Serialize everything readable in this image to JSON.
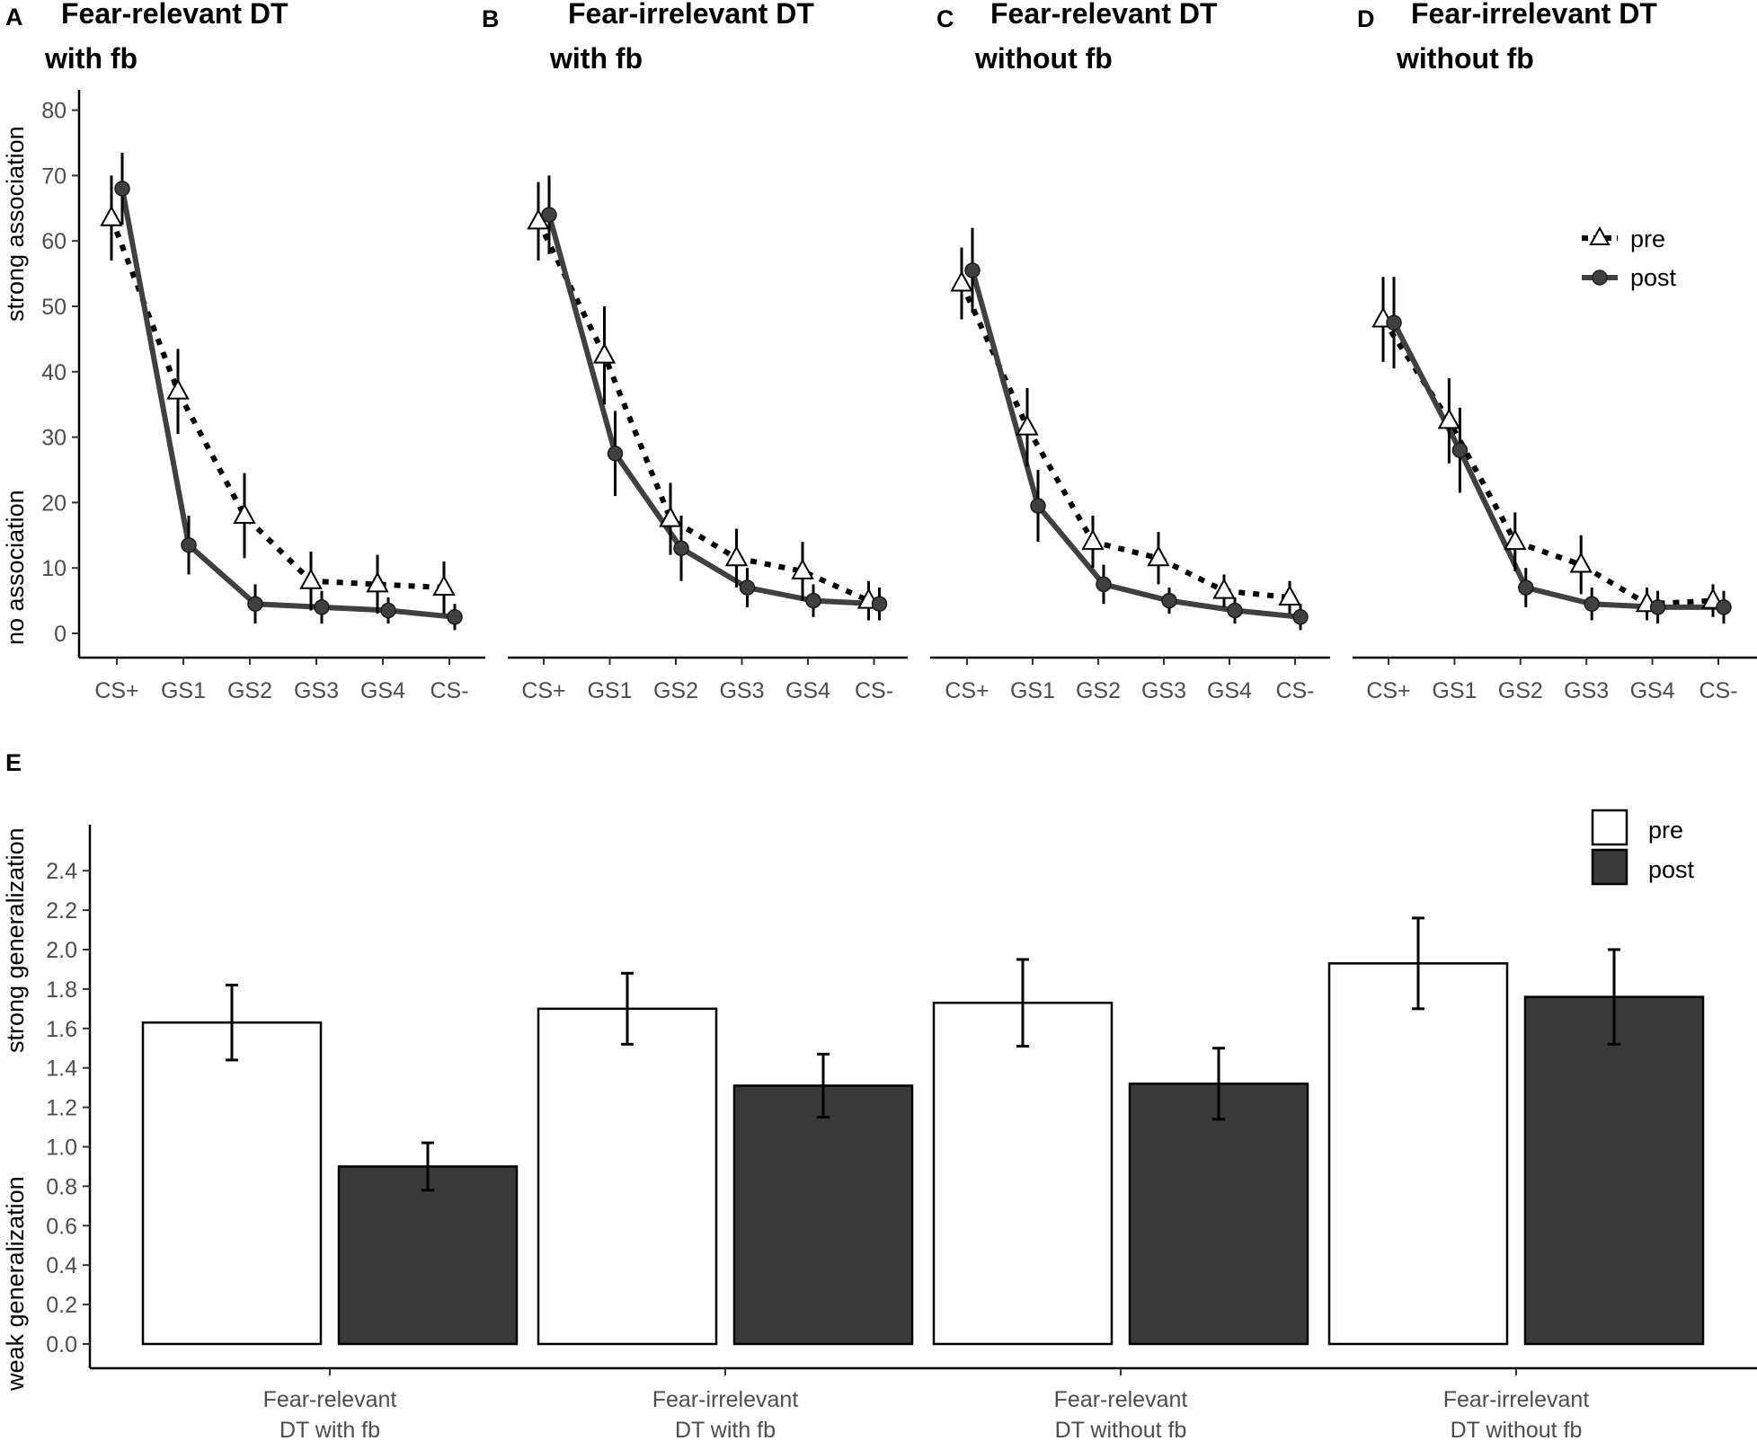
{
  "chart_data": [
    {
      "type": "line",
      "panel": "A",
      "title_lines": [
        "Fear-relevant DT",
        "with fb"
      ],
      "categories": [
        "CS+",
        "GS1",
        "GS2",
        "GS3",
        "GS4",
        "CS-"
      ],
      "ylabel_top": "strong association",
      "ylabel_bottom": "no association",
      "ylim": [
        0,
        80
      ],
      "yticks": [
        0,
        10,
        20,
        30,
        40,
        50,
        60,
        70,
        80
      ],
      "series": [
        {
          "name": "pre",
          "values": [
            63.5,
            37,
            18,
            8,
            7.5,
            7
          ],
          "err": [
            6.5,
            6.5,
            6.5,
            4.5,
            4.5,
            4
          ]
        },
        {
          "name": "post",
          "values": [
            68,
            13.5,
            4.5,
            4,
            3.5,
            2.5
          ],
          "err": [
            5.5,
            4.5,
            3,
            2.5,
            2,
            2
          ]
        }
      ]
    },
    {
      "type": "line",
      "panel": "B",
      "title_lines": [
        "Fear-irrelevant DT",
        "with fb"
      ],
      "categories": [
        "CS+",
        "GS1",
        "GS2",
        "GS3",
        "GS4",
        "CS-"
      ],
      "ylim": [
        0,
        80
      ],
      "series": [
        {
          "name": "pre",
          "values": [
            63,
            42.5,
            17.5,
            11.5,
            9.5,
            5
          ],
          "err": [
            6,
            7.5,
            5.5,
            4.5,
            4.5,
            3
          ]
        },
        {
          "name": "post",
          "values": [
            64,
            27.5,
            13,
            7,
            5,
            4.5
          ],
          "err": [
            6,
            6.5,
            5,
            3,
            2.5,
            2.5
          ]
        }
      ]
    },
    {
      "type": "line",
      "panel": "C",
      "title_lines": [
        "Fear-relevant DT",
        "without fb"
      ],
      "categories": [
        "CS+",
        "GS1",
        "GS2",
        "GS3",
        "GS4",
        "CS-"
      ],
      "ylim": [
        0,
        80
      ],
      "series": [
        {
          "name": "pre",
          "values": [
            53.5,
            31.5,
            14,
            11.5,
            6.5,
            5.5
          ],
          "err": [
            5.5,
            6,
            4,
            4,
            2.5,
            2.5
          ]
        },
        {
          "name": "post",
          "values": [
            55.5,
            19.5,
            7.5,
            5,
            3.5,
            2.5
          ],
          "err": [
            6.5,
            5.5,
            3,
            2,
            2,
            2
          ]
        }
      ]
    },
    {
      "type": "line",
      "panel": "D",
      "title_lines": [
        "Fear-irrelevant DT",
        "without fb"
      ],
      "categories": [
        "CS+",
        "GS1",
        "GS2",
        "GS3",
        "GS4",
        "CS-"
      ],
      "ylim": [
        0,
        80
      ],
      "legend": [
        "pre",
        "post"
      ],
      "series": [
        {
          "name": "pre",
          "values": [
            48,
            32.5,
            14,
            10.5,
            4.5,
            5
          ],
          "err": [
            6.5,
            6.5,
            4.5,
            4.5,
            2.5,
            2.5
          ]
        },
        {
          "name": "post",
          "values": [
            47.5,
            28,
            7,
            4.5,
            4,
            4
          ],
          "err": [
            7,
            6.5,
            3,
            2.5,
            2.5,
            2.5
          ]
        }
      ]
    },
    {
      "type": "bar",
      "panel": "E",
      "categories": [
        [
          "Fear-relevant",
          "DT with fb"
        ],
        [
          "Fear-irrelevant",
          "DT with fb"
        ],
        [
          "Fear-relevant",
          "DT without fb"
        ],
        [
          "Fear-irrelevant",
          "DT without fb"
        ]
      ],
      "ylabel_top": "strong generalization",
      "ylabel_bottom": "weak generalization",
      "ylim": [
        0,
        2.55
      ],
      "yticks": [
        "0.0",
        "0.2",
        "0.4",
        "0.6",
        "0.8",
        "1.0",
        "1.2",
        "1.4",
        "1.6",
        "1.8",
        "2.0",
        "2.2",
        "2.4"
      ],
      "legend": [
        "pre",
        "post"
      ],
      "series": [
        {
          "name": "pre",
          "values": [
            1.63,
            1.7,
            1.73,
            1.93
          ],
          "err": [
            0.19,
            0.18,
            0.22,
            0.23
          ]
        },
        {
          "name": "post",
          "values": [
            0.9,
            1.31,
            1.32,
            1.76
          ],
          "err": [
            0.12,
            0.16,
            0.18,
            0.24
          ]
        }
      ]
    }
  ],
  "colors": {
    "pre_fill": "#ffffff",
    "post_fill": "#3a3a3a",
    "post_line": "#404040",
    "axis": "#000000",
    "tick_text": "#4d4d4d"
  }
}
